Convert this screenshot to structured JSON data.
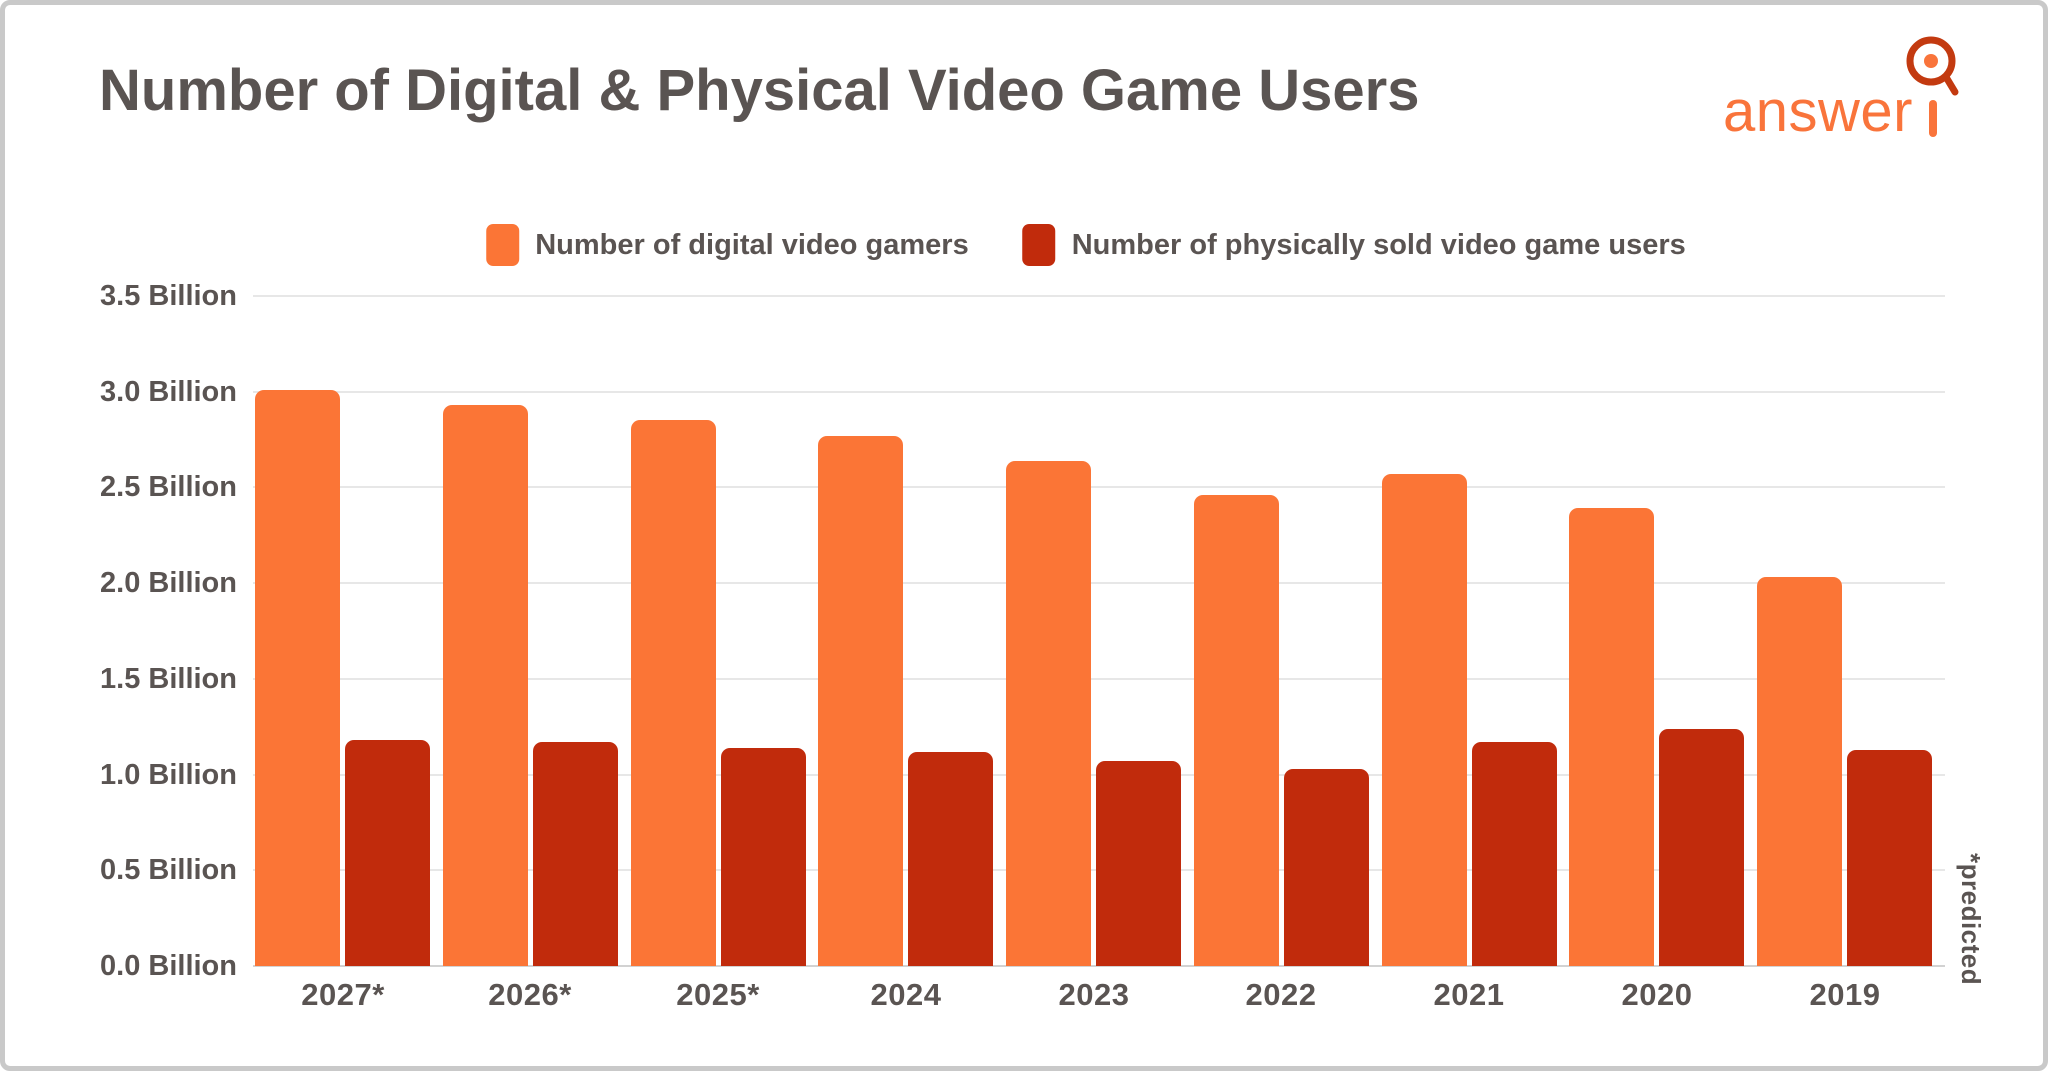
{
  "header": {
    "title": "Number of Digital & Physical Video Game Users"
  },
  "logo": {
    "text": "answer",
    "icon": "q-magnifier-icon",
    "text_color": "#F9743B",
    "ring_color": "#C33A10"
  },
  "chart_data": {
    "type": "bar",
    "title": "Number of Digital & Physical Video Game Users",
    "unit": "Billion",
    "categories": [
      "2027*",
      "2026*",
      "2025*",
      "2024",
      "2023",
      "2022",
      "2021",
      "2020",
      "2019"
    ],
    "series": [
      {
        "name": "Number of digital video gamers",
        "color": "#FB7536",
        "values": [
          3.01,
          2.93,
          2.85,
          2.77,
          2.64,
          2.46,
          2.57,
          2.39,
          2.03
        ]
      },
      {
        "name": "Number of physically sold video game users",
        "color": "#C12B0C",
        "values": [
          1.18,
          1.17,
          1.14,
          1.12,
          1.07,
          1.03,
          1.17,
          1.24,
          1.13
        ]
      }
    ],
    "ylim": [
      0,
      3.5
    ],
    "y_tick_step": 0.5,
    "y_ticks": [
      "0.0 Billion",
      "0.5 Billion",
      "1.0 Billion",
      "1.5 Billion",
      "2.0 Billion",
      "2.5 Billion",
      "3.0 Billion",
      "3.5 Billion"
    ],
    "grid": true,
    "legend_position": "top",
    "footnote": "*predicted"
  }
}
